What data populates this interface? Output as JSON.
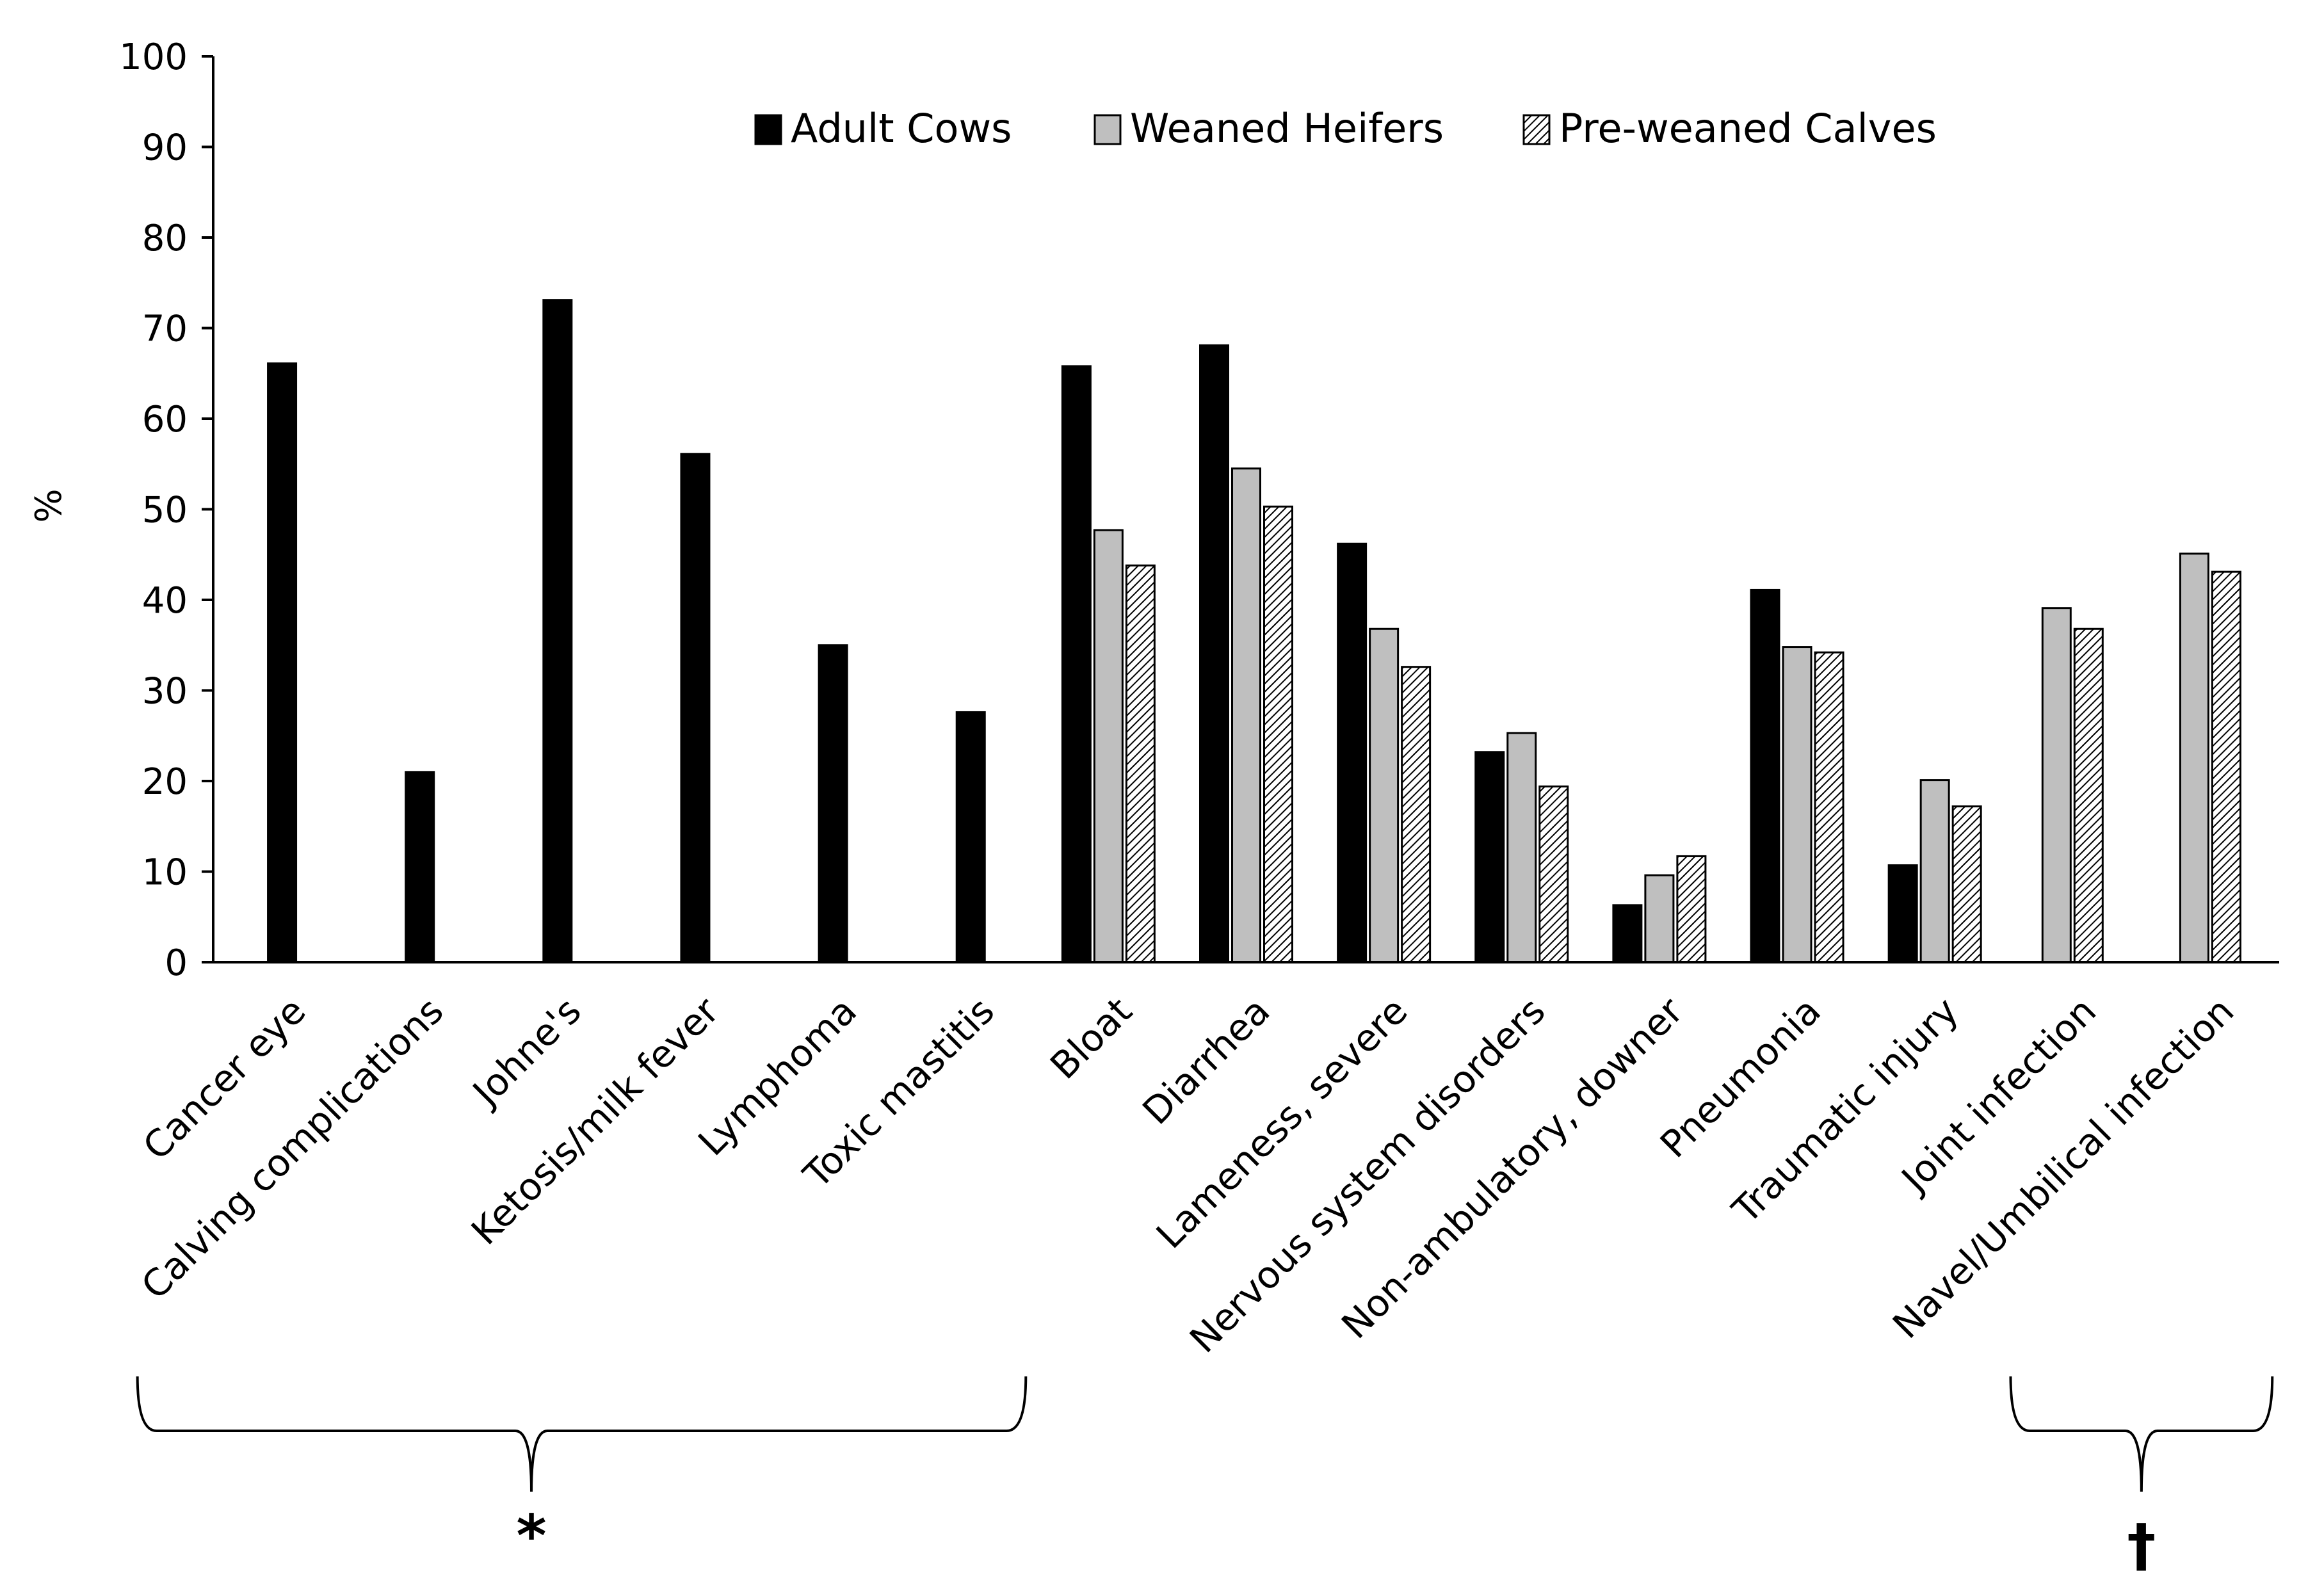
{
  "chart_data": {
    "type": "bar",
    "title": "",
    "xlabel": "",
    "ylabel": "%",
    "ylim": [
      0,
      100
    ],
    "yticks": [
      0,
      10,
      20,
      30,
      40,
      50,
      60,
      70,
      80,
      90,
      100
    ],
    "grid": false,
    "legend_position": "top",
    "categories": [
      "Cancer eye",
      "Calving complications",
      "Johne's",
      "Ketosis/milk fever",
      "Lymphoma",
      "Toxic mastitis",
      "Bloat",
      "Diarrhea",
      "Lameness, severe",
      "Nervous system disorders",
      "Non-ambulatory, downer",
      "Pneumonia",
      "Traumatic injury",
      "Joint infection",
      "Navel/Umbilical infection"
    ],
    "series": [
      {
        "name": "Adult Cows",
        "color": "#000000",
        "pattern": "solid",
        "values": [
          66.1,
          21.0,
          73.1,
          56.1,
          35.0,
          27.6,
          65.8,
          68.1,
          46.2,
          23.2,
          6.3,
          41.1,
          10.7,
          null,
          null
        ]
      },
      {
        "name": "Weaned Heifers",
        "color": "#bfbfbf",
        "pattern": "solid",
        "values": [
          null,
          null,
          null,
          null,
          null,
          null,
          47.7,
          54.5,
          36.8,
          25.3,
          9.6,
          34.8,
          20.1,
          39.1,
          45.1
        ]
      },
      {
        "name": "Pre-weaned Calves",
        "color": "#ffffff",
        "pattern": "hatch",
        "values": [
          null,
          null,
          null,
          null,
          null,
          null,
          43.8,
          50.3,
          32.6,
          19.4,
          11.7,
          34.2,
          17.2,
          36.8,
          43.1
        ]
      }
    ],
    "annotations": [
      {
        "symbol": "*",
        "spans": [
          "Cancer eye",
          "Toxic mastitis"
        ]
      },
      {
        "symbol": "†",
        "spans": [
          "Joint infection",
          "Navel/Umbilical infection"
        ]
      }
    ]
  }
}
